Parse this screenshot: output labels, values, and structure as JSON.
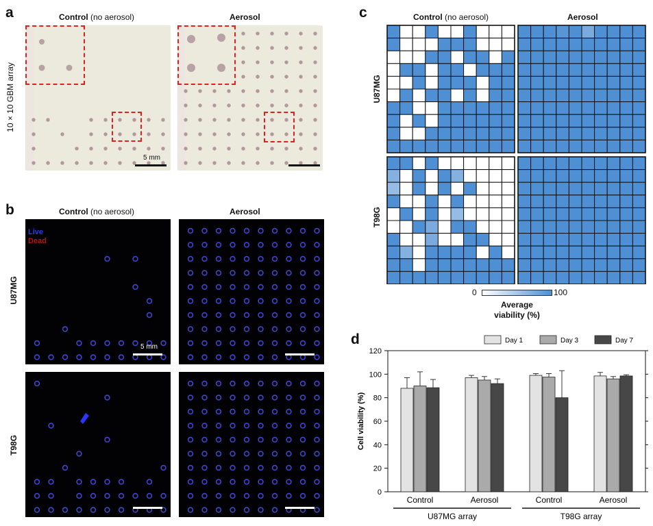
{
  "panels": {
    "a": {
      "label": "a",
      "control_title_bold": "Control",
      "control_title_rest": "(no aerosol)",
      "aerosol_title": "Aerosol",
      "side_label": "10 × 10 GBM array",
      "scale_label": "5 mm"
    },
    "b": {
      "label": "b",
      "control_title_bold": "Control",
      "control_title_rest": "(no aerosol)",
      "aerosol_title": "Aerosol",
      "row1_label": "U87MG",
      "row2_label": "T98G",
      "legend_live": "Live",
      "legend_dead": "Dead",
      "scale_label": "5 mm"
    },
    "c": {
      "label": "c",
      "control_title_bold": "Control",
      "control_title_rest": "(no aerosol)",
      "aerosol_title": "Aerosol",
      "row1_label": "U87MG",
      "row2_label": "T98G",
      "colorbar_min": "0",
      "colorbar_max": "100",
      "colorbar_title_1": "Average",
      "colorbar_title_2": "viability (%)"
    },
    "d": {
      "label": "d"
    }
  },
  "colors": {
    "photo_bg": "#ece9dd",
    "spot": "#a88a92",
    "heat_full": "#4f8fd3",
    "dash": "#e0201f",
    "bar_day1": "#e3e3e3",
    "bar_day3": "#aaaaaa",
    "bar_day7": "#474747"
  },
  "chart_data": [
    {
      "type": "heatmap",
      "title": "U87MG Control (no aerosol) - Average viability (%)",
      "range": [
        0,
        100
      ],
      "rows": [
        [
          100,
          0,
          0,
          100,
          0,
          0,
          100,
          0,
          0,
          0
        ],
        [
          100,
          0,
          0,
          0,
          100,
          100,
          100,
          0,
          0,
          0
        ],
        [
          0,
          0,
          0,
          100,
          100,
          0,
          100,
          100,
          0,
          100
        ],
        [
          0,
          100,
          100,
          0,
          100,
          100,
          0,
          100,
          100,
          100
        ],
        [
          0,
          0,
          100,
          0,
          100,
          100,
          100,
          0,
          100,
          100
        ],
        [
          0,
          100,
          0,
          100,
          100,
          0,
          100,
          0,
          100,
          100
        ],
        [
          100,
          100,
          0,
          0,
          100,
          100,
          100,
          100,
          100,
          100
        ],
        [
          100,
          0,
          100,
          0,
          100,
          100,
          100,
          100,
          100,
          100
        ],
        [
          100,
          0,
          0,
          100,
          100,
          100,
          100,
          100,
          100,
          100
        ],
        [
          100,
          100,
          100,
          100,
          100,
          100,
          100,
          100,
          100,
          100
        ]
      ]
    },
    {
      "type": "heatmap",
      "title": "U87MG Aerosol - Average viability (%)",
      "range": [
        0,
        100
      ],
      "rows": [
        [
          100,
          100,
          100,
          95,
          100,
          75,
          100,
          100,
          100,
          100
        ],
        [
          100,
          100,
          100,
          100,
          100,
          100,
          100,
          100,
          100,
          100
        ],
        [
          100,
          100,
          100,
          100,
          100,
          100,
          100,
          100,
          100,
          100
        ],
        [
          100,
          100,
          100,
          100,
          100,
          100,
          100,
          100,
          100,
          100
        ],
        [
          100,
          100,
          100,
          100,
          100,
          100,
          100,
          100,
          100,
          100
        ],
        [
          100,
          100,
          100,
          100,
          100,
          100,
          100,
          100,
          100,
          100
        ],
        [
          100,
          100,
          100,
          100,
          100,
          100,
          100,
          100,
          100,
          100
        ],
        [
          100,
          100,
          100,
          100,
          100,
          100,
          100,
          100,
          100,
          100
        ],
        [
          100,
          100,
          100,
          100,
          100,
          100,
          100,
          100,
          100,
          100
        ],
        [
          100,
          100,
          100,
          100,
          100,
          100,
          100,
          100,
          100,
          100
        ]
      ]
    },
    {
      "type": "heatmap",
      "title": "T98G Control (no aerosol) - Average viability (%)",
      "range": [
        0,
        100
      ],
      "rows": [
        [
          100,
          100,
          0,
          100,
          0,
          0,
          0,
          0,
          0,
          0
        ],
        [
          70,
          0,
          100,
          0,
          100,
          70,
          0,
          0,
          0,
          0
        ],
        [
          60,
          0,
          100,
          0,
          100,
          0,
          100,
          0,
          0,
          0
        ],
        [
          100,
          0,
          0,
          100,
          0,
          100,
          0,
          0,
          0,
          0
        ],
        [
          0,
          100,
          0,
          100,
          0,
          60,
          0,
          0,
          0,
          0
        ],
        [
          0,
          0,
          100,
          75,
          0,
          100,
          100,
          0,
          0,
          0
        ],
        [
          100,
          0,
          0,
          75,
          0,
          0,
          100,
          100,
          0,
          0
        ],
        [
          100,
          70,
          0,
          100,
          100,
          100,
          100,
          0,
          100,
          0
        ],
        [
          100,
          100,
          0,
          100,
          100,
          100,
          100,
          100,
          100,
          100
        ],
        [
          100,
          100,
          100,
          100,
          100,
          100,
          100,
          100,
          100,
          100
        ]
      ]
    },
    {
      "type": "heatmap",
      "title": "T98G Aerosol - Average viability (%)",
      "range": [
        0,
        100
      ],
      "rows": [
        [
          100,
          100,
          100,
          100,
          100,
          100,
          100,
          100,
          100,
          100
        ],
        [
          100,
          100,
          100,
          100,
          100,
          100,
          100,
          100,
          100,
          100
        ],
        [
          100,
          100,
          100,
          100,
          100,
          100,
          100,
          100,
          100,
          100
        ],
        [
          100,
          100,
          100,
          100,
          100,
          100,
          100,
          100,
          100,
          100
        ],
        [
          100,
          100,
          100,
          100,
          100,
          100,
          100,
          100,
          100,
          100
        ],
        [
          100,
          100,
          100,
          100,
          100,
          100,
          100,
          100,
          100,
          100
        ],
        [
          100,
          100,
          100,
          100,
          100,
          100,
          100,
          100,
          100,
          100
        ],
        [
          100,
          100,
          100,
          100,
          100,
          100,
          100,
          100,
          100,
          100
        ],
        [
          100,
          100,
          100,
          100,
          100,
          100,
          100,
          100,
          100,
          100
        ],
        [
          100,
          100,
          100,
          100,
          100,
          100,
          100,
          100,
          100,
          100
        ]
      ]
    },
    {
      "type": "bar",
      "title": "",
      "ylabel": "Cell viability (%)",
      "xlabel": "",
      "ylim": [
        0,
        120
      ],
      "yticks": [
        0,
        20,
        40,
        60,
        80,
        100,
        120
      ],
      "categories": [
        "Control",
        "Aerosol",
        "Control",
        "Aerosol"
      ],
      "groups": [
        {
          "label": "U87MG array",
          "categories": [
            0,
            1
          ]
        },
        {
          "label": "T98G array",
          "categories": [
            2,
            3
          ]
        }
      ],
      "legend_position": "top",
      "series": [
        {
          "name": "Day 1",
          "values": [
            88,
            97,
            99,
            98.5
          ],
          "errors": [
            9,
            2,
            1.5,
            3
          ]
        },
        {
          "name": "Day 3",
          "values": [
            90,
            95,
            97.5,
            96
          ],
          "errors": [
            12,
            3,
            3,
            2
          ]
        },
        {
          "name": "Day 7",
          "values": [
            88.5,
            92,
            80,
            98.5
          ],
          "errors": [
            7,
            4,
            23,
            1
          ]
        }
      ]
    }
  ]
}
